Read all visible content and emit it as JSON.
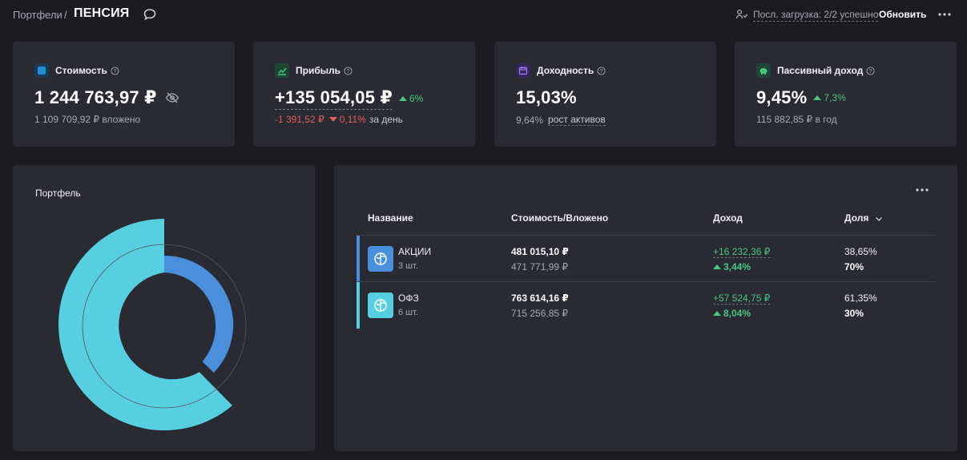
{
  "breadcrumb": {
    "parent": "Портфели",
    "separator": "/",
    "title": "ПЕНСИЯ"
  },
  "header": {
    "load_status": "Посл. загрузка: 2/2 успешно",
    "refresh_label": "Обновить"
  },
  "cards": {
    "value": {
      "label": "Стоимость",
      "main": "1 244 763,97 ₽",
      "sub": "1 109 709,92 ₽ вложено",
      "icon": "wallet-icon",
      "icon_color": "#1e8fd6"
    },
    "profit": {
      "label": "Прибыль",
      "main": "+135 054,05 ₽",
      "delta": "6%",
      "sub_value": "-1 391,52 ₽",
      "sub_delta": "0,11%",
      "sub_suffix": "за день",
      "icon": "chart-icon",
      "icon_color": "#2f9e62"
    },
    "yield": {
      "label": "Доходность",
      "main": "15,03%",
      "sub_value": "9,64%",
      "sub_link": "рост активов",
      "icon": "calendar-icon",
      "icon_color": "#7b4fe0"
    },
    "passive": {
      "label": "Пассивный доход",
      "main": "9,45%",
      "delta": "7,3%",
      "sub": "115 882,85 ₽ в год",
      "icon": "piggy-icon",
      "icon_color": "#2f9e62"
    }
  },
  "portfolio": {
    "title": "Портфель"
  },
  "table": {
    "columns": [
      "Название",
      "Стоимость/Вложено",
      "Доход",
      "Доля"
    ],
    "rows": [
      {
        "name": "АКЦИИ",
        "count": "3 шт.",
        "cost": "481 015,10 ₽",
        "invested": "471 771,99 ₽",
        "income": "+16 232,36 ₽",
        "income_pct": "3,44%",
        "share": "38,65%",
        "target_share": "70%",
        "color": "#4a8fdc"
      },
      {
        "name": "ОФЗ",
        "count": "6 шт.",
        "cost": "763 614,16 ₽",
        "invested": "715 256,85 ₽",
        "income": "+57 524,75 ₽",
        "income_pct": "8,04%",
        "share": "61,35%",
        "target_share": "30%",
        "color": "#56cfe0"
      }
    ]
  },
  "colors": {
    "accent_up": "#46c882",
    "accent_down": "#e0605d",
    "stocks": "#4a8fdc",
    "bonds": "#56cfe0",
    "panel": "#2a2a33",
    "background": "#1b1b20"
  }
}
